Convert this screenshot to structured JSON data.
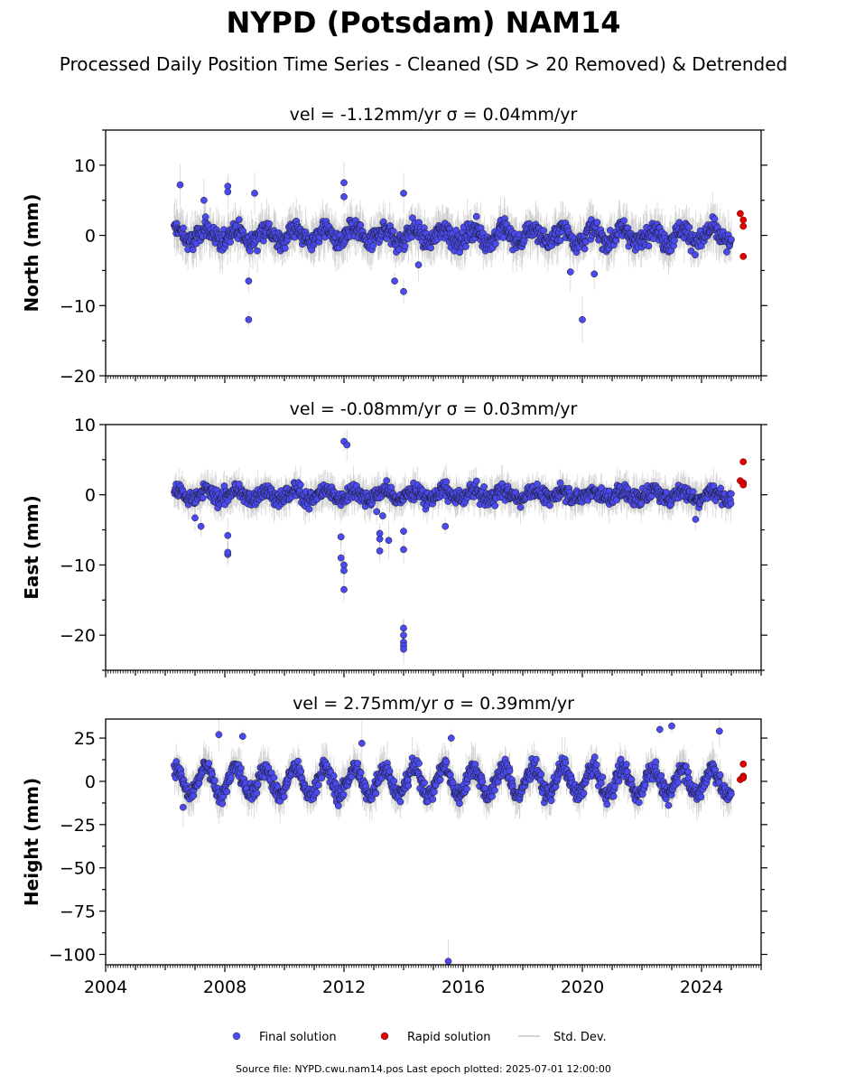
{
  "title": "NYPD (Potsdam) NAM14",
  "subtitle": "Processed Daily Position Time Series - Cleaned (SD > 20 Removed) & Detrended",
  "footer": "Source file: NYPD.cwu.nam14.pos  Last epoch plotted: 2025-07-01 12:00:00",
  "legend": {
    "items": [
      {
        "label": "Final solution",
        "color": "#4a4af0",
        "kind": "dot"
      },
      {
        "label": "Rapid solution",
        "color": "#e00000",
        "kind": "dot"
      },
      {
        "label": "Std. Dev.",
        "color": "#c8c8c8",
        "kind": "line"
      }
    ]
  },
  "chart_data": [
    {
      "type": "scatter",
      "title": "vel = -1.12mm/yr   σ = 0.04mm/yr",
      "ylabel": "North (mm)",
      "xlim": [
        2004,
        2026
      ],
      "ylim": [
        -20,
        15
      ],
      "yticks": [
        -20,
        -10,
        0,
        10
      ],
      "xticks": [
        2004,
        2008,
        2012,
        2016,
        2020,
        2024
      ],
      "x_start": 2006.3,
      "x_end": 2025.0,
      "noise_sd": 1.8,
      "seasonal_amp": 1.0,
      "outliers": [
        [
          2006.5,
          7.2
        ],
        [
          2007.3,
          5.0
        ],
        [
          2008.1,
          7.0
        ],
        [
          2008.1,
          6.2
        ],
        [
          2008.8,
          -6.5
        ],
        [
          2008.8,
          -12.0
        ],
        [
          2009.0,
          6.0
        ],
        [
          2012.0,
          7.5
        ],
        [
          2012.0,
          5.5
        ],
        [
          2013.7,
          -6.5
        ],
        [
          2014.0,
          -8.0
        ],
        [
          2014.0,
          6.0
        ],
        [
          2014.5,
          -4.2
        ],
        [
          2019.6,
          -5.2
        ],
        [
          2020.0,
          -12.0
        ],
        [
          2020.4,
          -5.5
        ]
      ],
      "rapid": [
        [
          2025.3,
          3.1
        ],
        [
          2025.4,
          2.2
        ],
        [
          2025.4,
          1.3
        ],
        [
          2025.4,
          -3.0
        ]
      ]
    },
    {
      "type": "scatter",
      "title": "vel = -0.08mm/yr   σ = 0.03mm/yr",
      "ylabel": "East (mm)",
      "xlim": [
        2004,
        2026
      ],
      "ylim": [
        -25,
        10
      ],
      "yticks": [
        -20,
        -10,
        0,
        10
      ],
      "xticks": [
        2004,
        2008,
        2012,
        2016,
        2020,
        2024
      ],
      "x_start": 2006.3,
      "x_end": 2025.0,
      "noise_sd": 1.4,
      "seasonal_amp": 0.6,
      "outliers": [
        [
          2007.0,
          -3.3
        ],
        [
          2007.2,
          -4.5
        ],
        [
          2008.1,
          -5.8
        ],
        [
          2008.1,
          -8.5
        ],
        [
          2008.1,
          -8.2
        ],
        [
          2011.9,
          -6.0
        ],
        [
          2011.9,
          -9.0
        ],
        [
          2012.0,
          -10.0
        ],
        [
          2012.0,
          -10.8
        ],
        [
          2012.0,
          -13.5
        ],
        [
          2012.0,
          7.6
        ],
        [
          2012.1,
          7.1
        ],
        [
          2013.1,
          -2.4
        ],
        [
          2013.2,
          -5.5
        ],
        [
          2013.2,
          -6.3
        ],
        [
          2013.2,
          -8.0
        ],
        [
          2013.3,
          -3.0
        ],
        [
          2013.5,
          -6.5
        ],
        [
          2014.0,
          -5.2
        ],
        [
          2014.0,
          -7.8
        ],
        [
          2014.0,
          -19.0
        ],
        [
          2014.0,
          -20.0
        ],
        [
          2014.0,
          -21.0
        ],
        [
          2014.0,
          -21.5
        ],
        [
          2014.0,
          -22.0
        ],
        [
          2015.4,
          -4.5
        ],
        [
          2023.8,
          -3.5
        ]
      ],
      "rapid": [
        [
          2025.3,
          2.0
        ],
        [
          2025.4,
          4.7
        ],
        [
          2025.4,
          1.7
        ],
        [
          2025.4,
          1.4
        ]
      ]
    },
    {
      "type": "scatter",
      "title": "vel = 2.75mm/yr   σ = 0.39mm/yr",
      "ylabel": "Height (mm)",
      "xlim": [
        2004,
        2026
      ],
      "ylim": [
        -106,
        36
      ],
      "yticks": [
        -100,
        -75,
        -50,
        -25,
        0,
        25
      ],
      "xticks": [
        2004,
        2008,
        2012,
        2016,
        2020,
        2024
      ],
      "x_start": 2006.3,
      "x_end": 2025.0,
      "noise_sd": 6.5,
      "seasonal_amp": 8.0,
      "outliers": [
        [
          2006.6,
          -15.0
        ],
        [
          2007.8,
          27.0
        ],
        [
          2008.6,
          26.0
        ],
        [
          2012.6,
          22.0
        ],
        [
          2015.6,
          25.0
        ],
        [
          2015.5,
          -104.0
        ],
        [
          2022.6,
          30.0
        ],
        [
          2023.0,
          32.0
        ],
        [
          2024.6,
          29.0
        ]
      ],
      "rapid": [
        [
          2025.3,
          1.0
        ],
        [
          2025.4,
          10.0
        ],
        [
          2025.4,
          3.0
        ],
        [
          2025.4,
          2.0
        ]
      ]
    }
  ]
}
